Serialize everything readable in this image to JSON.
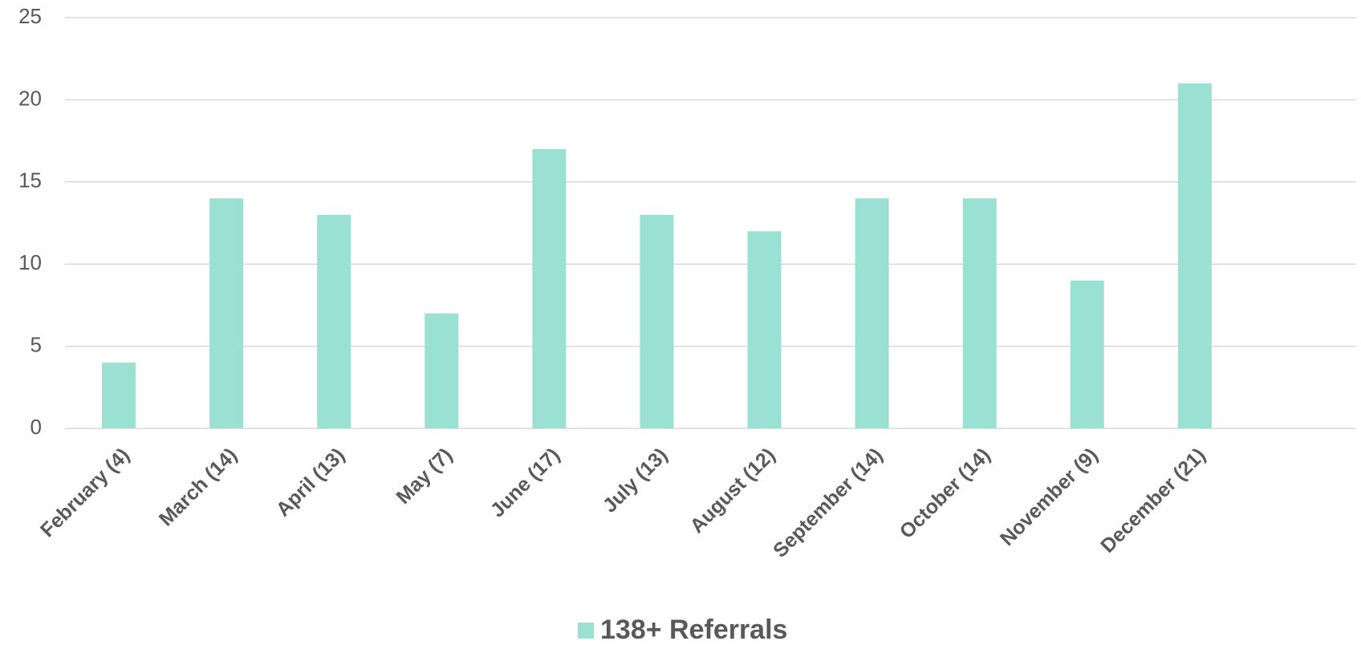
{
  "chart_data": {
    "type": "bar",
    "categories": [
      "February (4)",
      "March (14)",
      "April (13)",
      "May (7)",
      "June (17)",
      "July (13)",
      "August (12)",
      "September (14)",
      "October (14)",
      "November (9)",
      "December (21)",
      null
    ],
    "series": [
      {
        "name": "138+ Referrals",
        "color": "#9ae0d3",
        "values": [
          4,
          14,
          13,
          7,
          17,
          13,
          12,
          14,
          14,
          9,
          21,
          null
        ]
      }
    ],
    "ylim": [
      0,
      25
    ],
    "yticks": [
      0,
      5,
      10,
      15,
      20,
      25
    ],
    "grid": true,
    "legend": "bottom"
  }
}
